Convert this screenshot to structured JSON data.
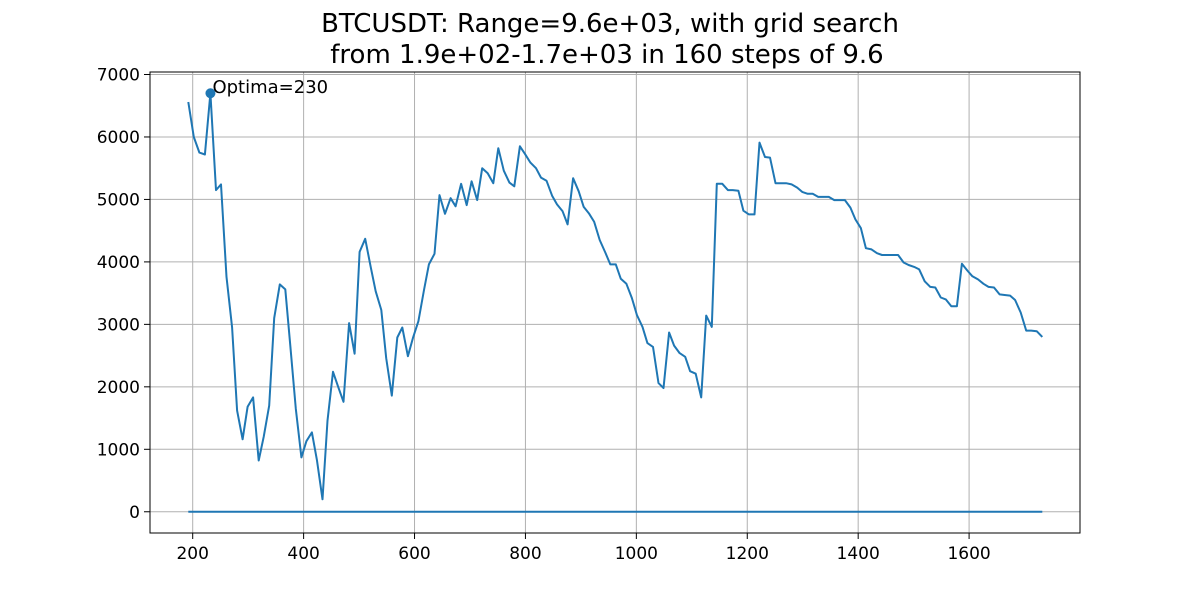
{
  "chart_data": {
    "type": "line",
    "title_lines": [
      "BTCUSDT: Range=9.6e+03, with grid search",
      "from 1.9e+02-1.7e+03 in 160 steps of 9.6"
    ],
    "xlabel": "",
    "ylabel": "",
    "xlim": [
      123,
      1800
    ],
    "ylim": [
      -340,
      7040
    ],
    "x_ticks": [
      200,
      400,
      600,
      800,
      1000,
      1200,
      1400,
      1600
    ],
    "y_ticks": [
      0,
      1000,
      2000,
      3000,
      4000,
      5000,
      6000,
      7000
    ],
    "grid": true,
    "line_color": "#1f77b4",
    "series": [
      {
        "values": [
          [
            192,
            6560
          ],
          [
            202,
            6000
          ],
          [
            212,
            5750
          ],
          [
            222,
            5720
          ],
          [
            232,
            6700
          ],
          [
            242,
            5150
          ],
          [
            251,
            5240
          ],
          [
            261,
            3760
          ],
          [
            271,
            2950
          ],
          [
            280,
            1620
          ],
          [
            290,
            1160
          ],
          [
            299,
            1680
          ],
          [
            309,
            1830
          ],
          [
            319,
            820
          ],
          [
            328,
            1200
          ],
          [
            338,
            1700
          ],
          [
            347,
            3100
          ],
          [
            357,
            3640
          ],
          [
            367,
            3560
          ],
          [
            376,
            2660
          ],
          [
            386,
            1650
          ],
          [
            396,
            870
          ],
          [
            405,
            1130
          ],
          [
            415,
            1270
          ],
          [
            424,
            830
          ],
          [
            434,
            200
          ],
          [
            443,
            1460
          ],
          [
            453,
            2240
          ],
          [
            463,
            1980
          ],
          [
            472,
            1760
          ],
          [
            482,
            3020
          ],
          [
            492,
            2530
          ],
          [
            501,
            4160
          ],
          [
            511,
            4370
          ],
          [
            521,
            3920
          ],
          [
            530,
            3530
          ],
          [
            540,
            3230
          ],
          [
            549,
            2460
          ],
          [
            559,
            1860
          ],
          [
            569,
            2790
          ],
          [
            578,
            2950
          ],
          [
            588,
            2490
          ],
          [
            597,
            2780
          ],
          [
            607,
            3050
          ],
          [
            617,
            3550
          ],
          [
            626,
            3960
          ],
          [
            636,
            4130
          ],
          [
            645,
            5070
          ],
          [
            655,
            4770
          ],
          [
            665,
            5020
          ],
          [
            674,
            4890
          ],
          [
            684,
            5250
          ],
          [
            694,
            4910
          ],
          [
            703,
            5290
          ],
          [
            713,
            4990
          ],
          [
            722,
            5500
          ],
          [
            732,
            5420
          ],
          [
            742,
            5260
          ],
          [
            751,
            5820
          ],
          [
            761,
            5460
          ],
          [
            771,
            5270
          ],
          [
            780,
            5210
          ],
          [
            790,
            5850
          ],
          [
            799,
            5730
          ],
          [
            809,
            5590
          ],
          [
            819,
            5500
          ],
          [
            828,
            5350
          ],
          [
            838,
            5300
          ],
          [
            848,
            5060
          ],
          [
            857,
            4920
          ],
          [
            867,
            4810
          ],
          [
            876,
            4600
          ],
          [
            886,
            5340
          ],
          [
            896,
            5130
          ],
          [
            905,
            4880
          ],
          [
            915,
            4770
          ],
          [
            924,
            4640
          ],
          [
            934,
            4350
          ],
          [
            944,
            4150
          ],
          [
            953,
            3960
          ],
          [
            963,
            3960
          ],
          [
            972,
            3730
          ],
          [
            982,
            3650
          ],
          [
            992,
            3420
          ],
          [
            1001,
            3150
          ],
          [
            1011,
            2960
          ],
          [
            1020,
            2700
          ],
          [
            1030,
            2640
          ],
          [
            1040,
            2060
          ],
          [
            1049,
            1980
          ],
          [
            1059,
            2870
          ],
          [
            1068,
            2660
          ],
          [
            1078,
            2540
          ],
          [
            1088,
            2480
          ],
          [
            1097,
            2250
          ],
          [
            1107,
            2210
          ],
          [
            1117,
            1830
          ],
          [
            1126,
            3140
          ],
          [
            1136,
            2960
          ],
          [
            1145,
            5250
          ],
          [
            1155,
            5250
          ],
          [
            1165,
            5150
          ],
          [
            1174,
            5150
          ],
          [
            1184,
            5140
          ],
          [
            1193,
            4820
          ],
          [
            1203,
            4760
          ],
          [
            1213,
            4760
          ],
          [
            1222,
            5910
          ],
          [
            1232,
            5680
          ],
          [
            1241,
            5670
          ],
          [
            1251,
            5260
          ],
          [
            1261,
            5260
          ],
          [
            1270,
            5260
          ],
          [
            1280,
            5240
          ],
          [
            1290,
            5190
          ],
          [
            1299,
            5120
          ],
          [
            1309,
            5090
          ],
          [
            1318,
            5090
          ],
          [
            1328,
            5040
          ],
          [
            1338,
            5040
          ],
          [
            1347,
            5040
          ],
          [
            1357,
            4990
          ],
          [
            1366,
            4990
          ],
          [
            1376,
            4990
          ],
          [
            1386,
            4870
          ],
          [
            1395,
            4680
          ],
          [
            1405,
            4540
          ],
          [
            1414,
            4220
          ],
          [
            1424,
            4200
          ],
          [
            1434,
            4140
          ],
          [
            1443,
            4110
          ],
          [
            1453,
            4110
          ],
          [
            1462,
            4110
          ],
          [
            1472,
            4110
          ],
          [
            1482,
            3990
          ],
          [
            1491,
            3950
          ],
          [
            1501,
            3920
          ],
          [
            1510,
            3880
          ],
          [
            1520,
            3690
          ],
          [
            1530,
            3600
          ],
          [
            1539,
            3590
          ],
          [
            1549,
            3430
          ],
          [
            1558,
            3400
          ],
          [
            1568,
            3290
          ],
          [
            1578,
            3290
          ],
          [
            1587,
            3970
          ],
          [
            1597,
            3860
          ],
          [
            1606,
            3770
          ],
          [
            1616,
            3720
          ],
          [
            1626,
            3650
          ],
          [
            1635,
            3600
          ],
          [
            1645,
            3590
          ],
          [
            1655,
            3480
          ],
          [
            1664,
            3470
          ],
          [
            1674,
            3460
          ],
          [
            1683,
            3390
          ],
          [
            1693,
            3190
          ],
          [
            1703,
            2900
          ],
          [
            1712,
            2900
          ],
          [
            1722,
            2890
          ],
          [
            1732,
            2800
          ]
        ]
      },
      {
        "values": [
          [
            192,
            0
          ],
          [
            1732,
            0
          ]
        ]
      }
    ],
    "marker": {
      "x": 232,
      "y": 6700
    },
    "annotations": [
      {
        "text": "Optima=230",
        "x": 232,
        "y": 6700
      }
    ]
  }
}
